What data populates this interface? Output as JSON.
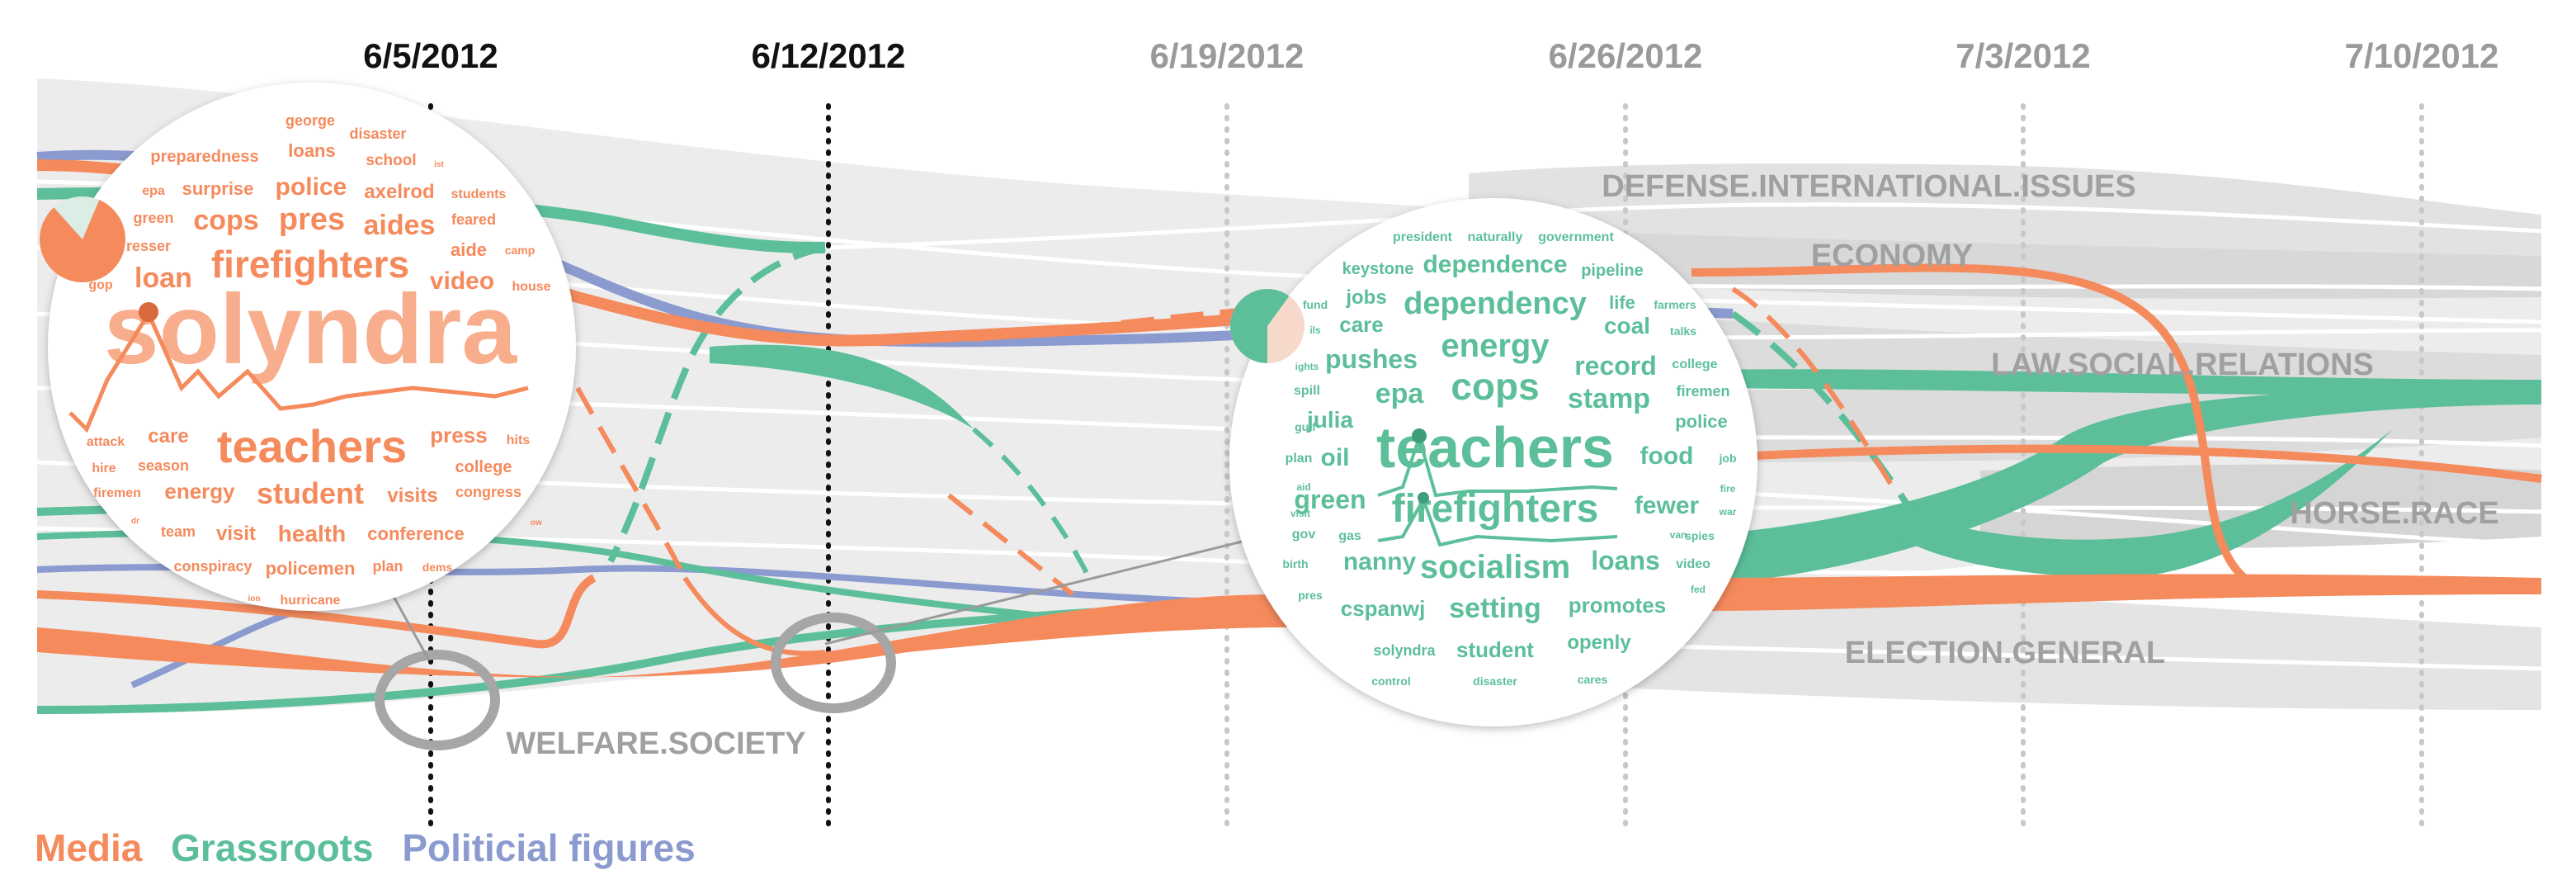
{
  "colors": {
    "media": "#f58a5d",
    "grassroots": "#5cbf9a",
    "political": "#8b9bd0",
    "band_dark": "#dcdcdc",
    "band_light": "#ececec",
    "topic_label": "#a0a0a0",
    "welfare_label": "#5a6078"
  },
  "dates": [
    {
      "label": "6/5/2012",
      "active": true
    },
    {
      "label": "6/12/2012",
      "active": true
    },
    {
      "label": "6/19/2012",
      "active": false
    },
    {
      "label": "6/26/2012",
      "active": false
    },
    {
      "label": "7/3/2012",
      "active": false
    },
    {
      "label": "7/10/2012",
      "active": false
    }
  ],
  "topics": [
    {
      "label": "DEFENSE.INTERNATIONAL.ISSUES"
    },
    {
      "label": "ECONOMY"
    },
    {
      "label": "LAW.SOCIAL.RELATIONS"
    },
    {
      "label": "HORSE.RACE"
    },
    {
      "label": "ELECTION.GENERAL"
    },
    {
      "label": "WELFARE.SOCIETY"
    }
  ],
  "legend": {
    "media": "Media",
    "grassroots": "Grassroots",
    "political": "Politicial figures"
  },
  "wordcloud_media": {
    "words": [
      {
        "t": "george",
        "s": 18
      },
      {
        "t": "disaster",
        "s": 18
      },
      {
        "t": "preparedness",
        "s": 20
      },
      {
        "t": "loans",
        "s": 22
      },
      {
        "t": "school",
        "s": 19
      },
      {
        "t": "ist",
        "s": 10
      },
      {
        "t": "epa",
        "s": 16
      },
      {
        "t": "surprise",
        "s": 22
      },
      {
        "t": "police",
        "s": 30
      },
      {
        "t": "axelrod",
        "s": 24
      },
      {
        "t": "students",
        "s": 16
      },
      {
        "t": "green",
        "s": 18
      },
      {
        "t": "cops",
        "s": 34
      },
      {
        "t": "pres",
        "s": 38
      },
      {
        "t": "aides",
        "s": 34
      },
      {
        "t": "feared",
        "s": 18
      },
      {
        "t": "resser",
        "s": 18
      },
      {
        "t": "aide",
        "s": 22
      },
      {
        "t": "camp",
        "s": 14
      },
      {
        "t": "firefighters",
        "s": 46
      },
      {
        "t": "gop",
        "s": 16
      },
      {
        "t": "loan",
        "s": 34
      },
      {
        "t": "video",
        "s": 30
      },
      {
        "t": "house",
        "s": 16
      },
      {
        "t": "solyndra",
        "s": 120
      },
      {
        "t": "attack",
        "s": 16
      },
      {
        "t": "care",
        "s": 24
      },
      {
        "t": "press",
        "s": 26
      },
      {
        "t": "hits",
        "s": 16
      },
      {
        "t": "teachers",
        "s": 56
      },
      {
        "t": "hire",
        "s": 16
      },
      {
        "t": "season",
        "s": 18
      },
      {
        "t": "college",
        "s": 20
      },
      {
        "t": "firemen",
        "s": 16
      },
      {
        "t": "energy",
        "s": 26
      },
      {
        "t": "student",
        "s": 36
      },
      {
        "t": "visits",
        "s": 24
      },
      {
        "t": "congress",
        "s": 18
      },
      {
        "t": "dr",
        "s": 10
      },
      {
        "t": "ow",
        "s": 10
      },
      {
        "t": "team",
        "s": 18
      },
      {
        "t": "visit",
        "s": 24
      },
      {
        "t": "health",
        "s": 28
      },
      {
        "t": "conference",
        "s": 22
      },
      {
        "t": "conspiracy",
        "s": 18
      },
      {
        "t": "policemen",
        "s": 22
      },
      {
        "t": "plan",
        "s": 18
      },
      {
        "t": "dems",
        "s": 14
      },
      {
        "t": "hurricane",
        "s": 16
      },
      {
        "t": "ion",
        "s": 10
      }
    ],
    "pie": {
      "grassroots": 0.18,
      "media": 0.82
    }
  },
  "wordcloud_grassroots": {
    "words": [
      {
        "t": "president",
        "s": 16
      },
      {
        "t": "naturally",
        "s": 16
      },
      {
        "t": "government",
        "s": 16
      },
      {
        "t": "keystone",
        "s": 20
      },
      {
        "t": "dependence",
        "s": 30
      },
      {
        "t": "pipeline",
        "s": 20
      },
      {
        "t": "fund",
        "s": 14
      },
      {
        "t": "jobs",
        "s": 24
      },
      {
        "t": "dependency",
        "s": 38
      },
      {
        "t": "life",
        "s": 22
      },
      {
        "t": "farmers",
        "s": 14
      },
      {
        "t": "ils",
        "s": 12
      },
      {
        "t": "care",
        "s": 26
      },
      {
        "t": "coal",
        "s": 28
      },
      {
        "t": "talks",
        "s": 14
      },
      {
        "t": "ights",
        "s": 12
      },
      {
        "t": "pushes",
        "s": 32
      },
      {
        "t": "energy",
        "s": 40
      },
      {
        "t": "record",
        "s": 32
      },
      {
        "t": "college",
        "s": 16
      },
      {
        "t": "spill",
        "s": 16
      },
      {
        "t": "epa",
        "s": 34
      },
      {
        "t": "cops",
        "s": 46
      },
      {
        "t": "stamp",
        "s": 34
      },
      {
        "t": "firemen",
        "s": 18
      },
      {
        "t": "gulf",
        "s": 14
      },
      {
        "t": "julia",
        "s": 28
      },
      {
        "t": "police",
        "s": 22
      },
      {
        "t": "teachers",
        "s": 70
      },
      {
        "t": "plan",
        "s": 16
      },
      {
        "t": "oil",
        "s": 30
      },
      {
        "t": "food",
        "s": 30
      },
      {
        "t": "job",
        "s": 14
      },
      {
        "t": "aid",
        "s": 12
      },
      {
        "t": "fire",
        "s": 12
      },
      {
        "t": "green",
        "s": 32
      },
      {
        "t": "firefighters",
        "s": 48
      },
      {
        "t": "fewer",
        "s": 30
      },
      {
        "t": "war",
        "s": 12
      },
      {
        "t": "visit",
        "s": 12
      },
      {
        "t": "gov",
        "s": 16
      },
      {
        "t": "gas",
        "s": 16
      },
      {
        "t": "van",
        "s": 12
      },
      {
        "t": "spies",
        "s": 14
      },
      {
        "t": "birth",
        "s": 14
      },
      {
        "t": "nanny",
        "s": 30
      },
      {
        "t": "socialism",
        "s": 40
      },
      {
        "t": "loans",
        "s": 32
      },
      {
        "t": "video",
        "s": 16
      },
      {
        "t": "fed",
        "s": 12
      },
      {
        "t": "pres",
        "s": 14
      },
      {
        "t": "cspanwj",
        "s": 26
      },
      {
        "t": "setting",
        "s": 34
      },
      {
        "t": "promotes",
        "s": 26
      },
      {
        "t": "openly",
        "s": 24
      },
      {
        "t": "solyndra",
        "s": 18
      },
      {
        "t": "student",
        "s": 26
      },
      {
        "t": "control",
        "s": 14
      },
      {
        "t": "disaster",
        "s": 14
      },
      {
        "t": "cares",
        "s": 14
      }
    ],
    "pie": {
      "grassroots": 0.6,
      "media": 0.4
    }
  }
}
